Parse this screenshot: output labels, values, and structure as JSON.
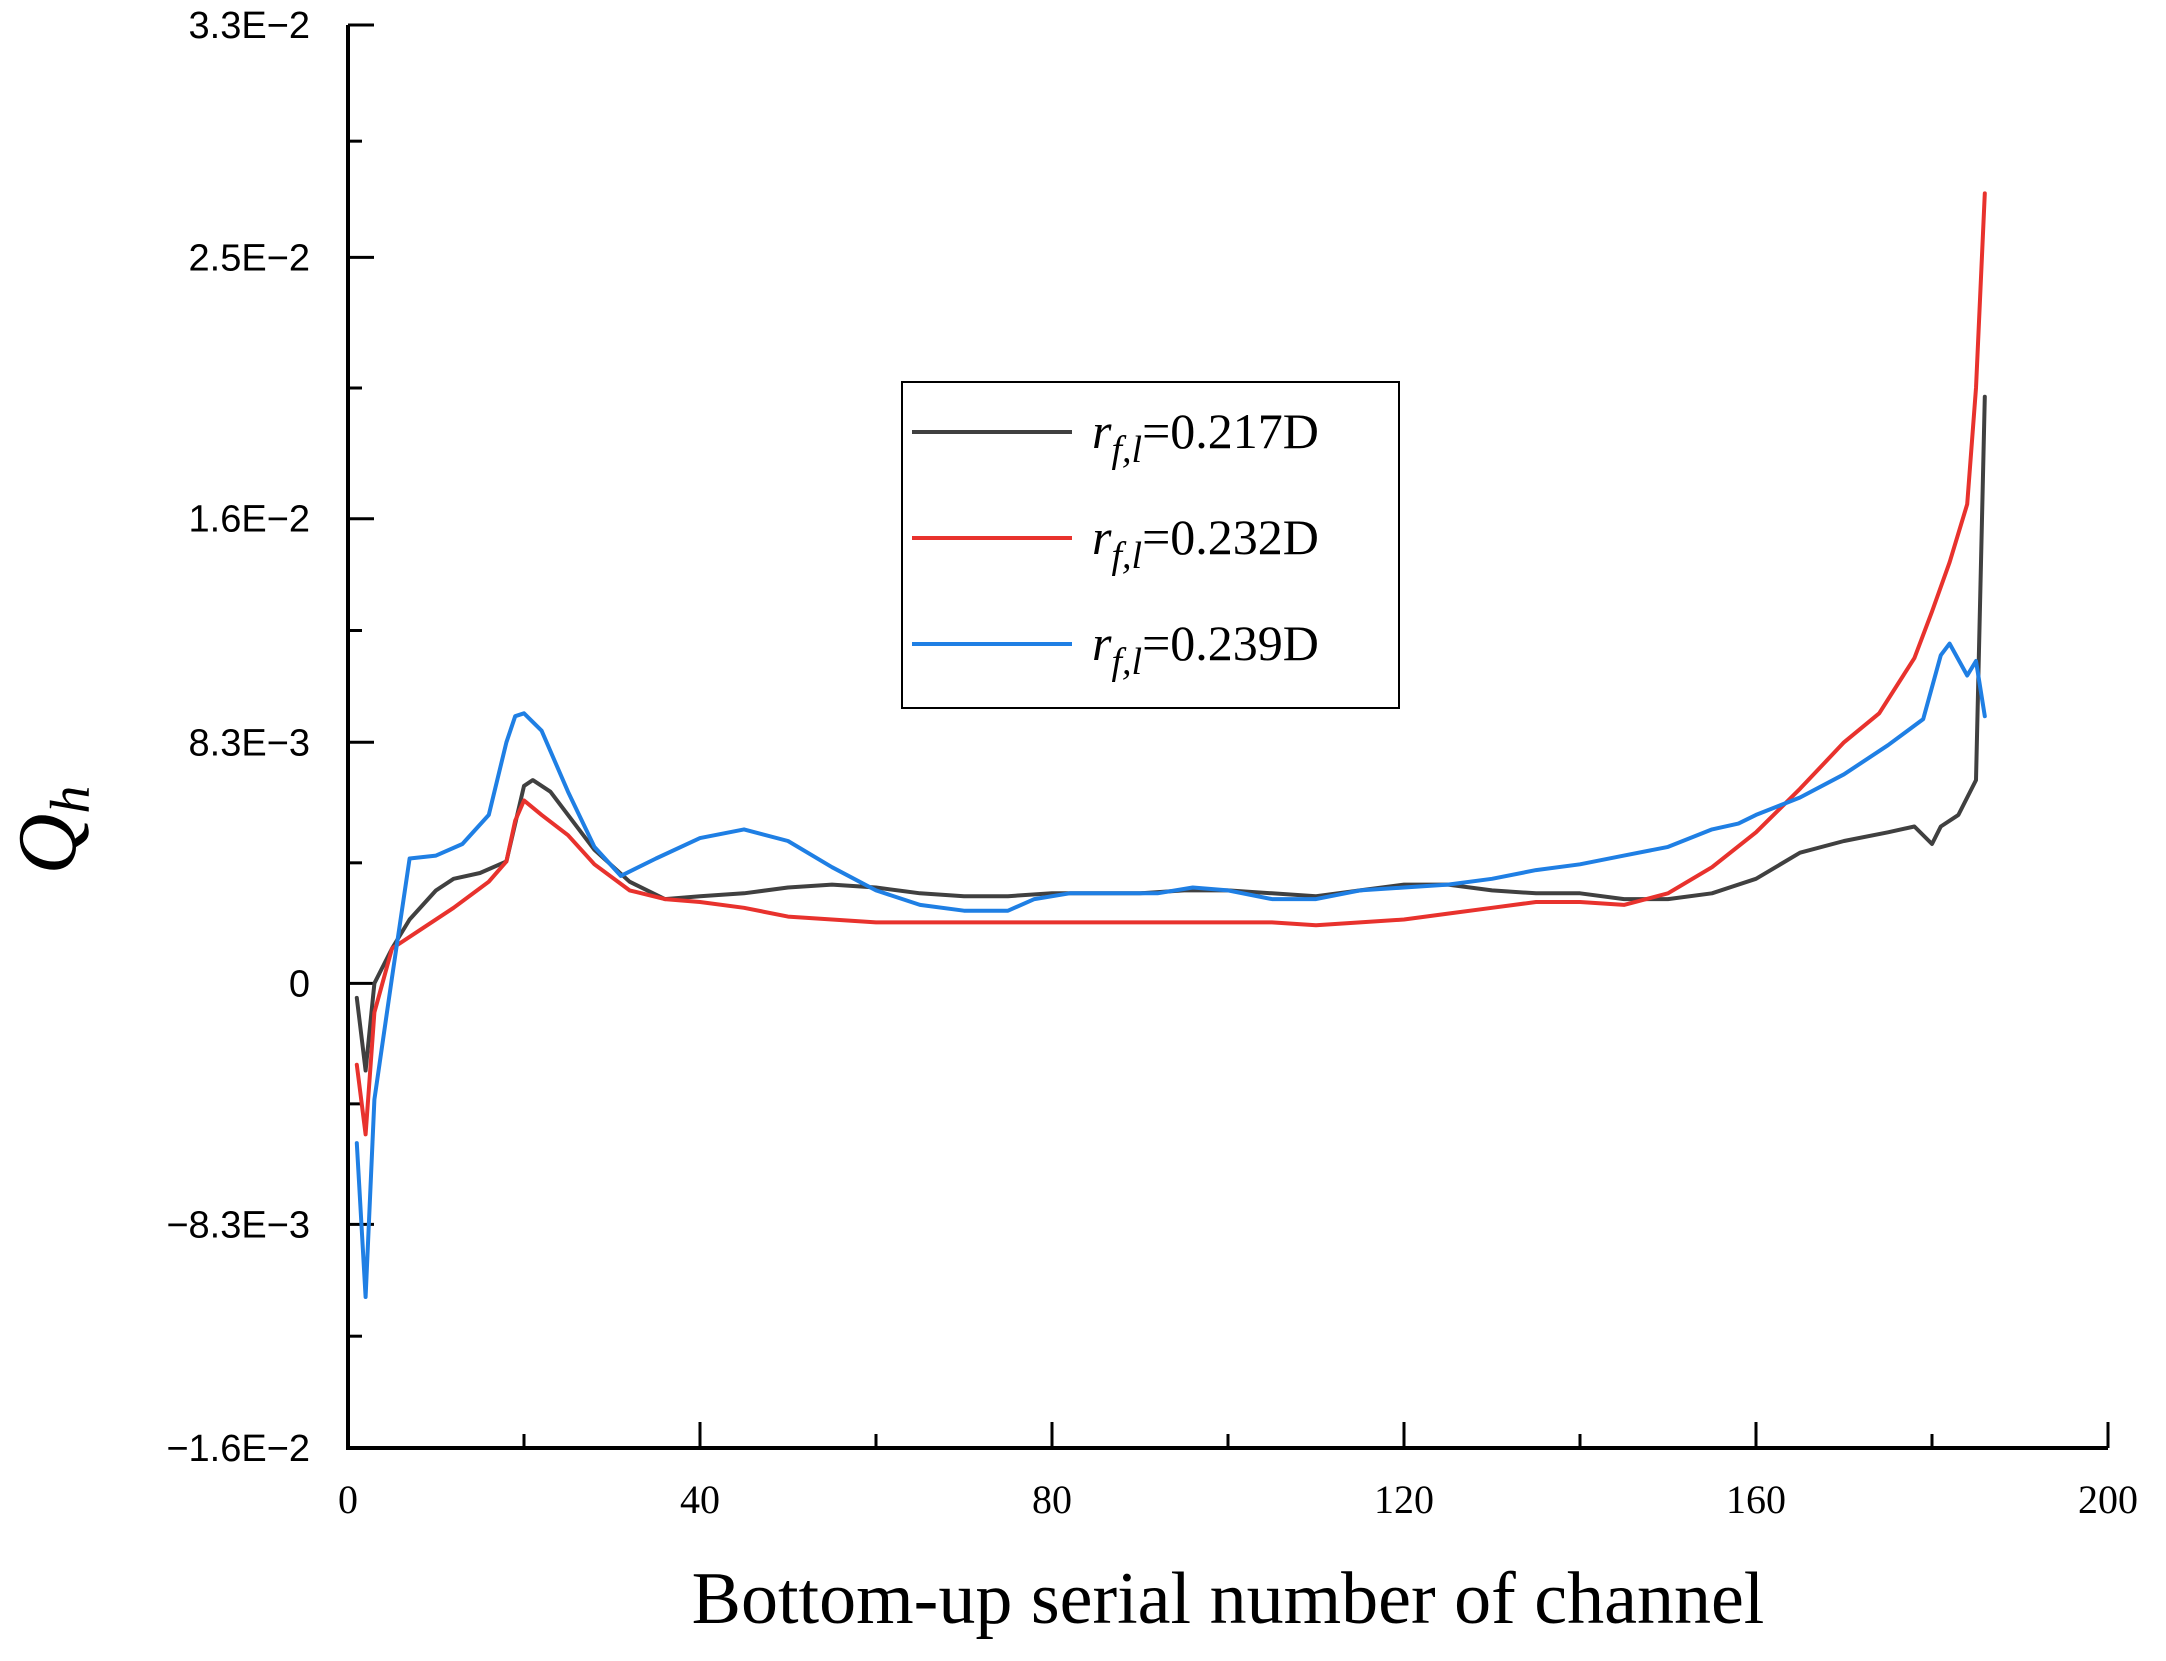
{
  "chart_data": {
    "type": "line",
    "xlabel": "Bottom-up serial number of channel",
    "ylabel": "Q",
    "ylabel_sub": "h",
    "xlim": [
      0,
      200
    ],
    "ylim": [
      -0.016,
      0.033
    ],
    "x_ticks": [
      {
        "value": 0,
        "label": "0"
      },
      {
        "value": 40,
        "label": "40"
      },
      {
        "value": 80,
        "label": "80"
      },
      {
        "value": 120,
        "label": "120"
      },
      {
        "value": 160,
        "label": "160"
      },
      {
        "value": 200,
        "label": "200"
      }
    ],
    "y_ticks": [
      {
        "value": 0.033,
        "label": "3.3E−2"
      },
      {
        "value": 0.025,
        "label": "2.5E−2"
      },
      {
        "value": 0.016,
        "label": "1.6E−2"
      },
      {
        "value": 0.0083,
        "label": "8.3E−3"
      },
      {
        "value": 0,
        "label": "0"
      },
      {
        "value": -0.0083,
        "label": "−8.3E−3"
      },
      {
        "value": -0.016,
        "label": "−1.6E−2"
      }
    ],
    "legend_position": "center-left",
    "series": [
      {
        "legend": {
          "r": "r",
          "sub": "f,l",
          "value": "=0.217D"
        },
        "color": "#404040",
        "points": [
          [
            1,
            -0.0005
          ],
          [
            2,
            -0.003
          ],
          [
            3,
            0
          ],
          [
            5,
            0.0012
          ],
          [
            7,
            0.0022
          ],
          [
            10,
            0.0032
          ],
          [
            12,
            0.0036
          ],
          [
            15,
            0.0038
          ],
          [
            18,
            0.0042
          ],
          [
            20,
            0.0068
          ],
          [
            21,
            0.007
          ],
          [
            23,
            0.0066
          ],
          [
            25,
            0.0058
          ],
          [
            28,
            0.0046
          ],
          [
            32,
            0.0035
          ],
          [
            36,
            0.0029
          ],
          [
            40,
            0.003
          ],
          [
            45,
            0.0031
          ],
          [
            50,
            0.0033
          ],
          [
            55,
            0.0034
          ],
          [
            60,
            0.0033
          ],
          [
            65,
            0.0031
          ],
          [
            70,
            0.003
          ],
          [
            75,
            0.003
          ],
          [
            80,
            0.0031
          ],
          [
            85,
            0.0031
          ],
          [
            90,
            0.0031
          ],
          [
            95,
            0.0032
          ],
          [
            100,
            0.0032
          ],
          [
            105,
            0.0031
          ],
          [
            110,
            0.003
          ],
          [
            115,
            0.0032
          ],
          [
            120,
            0.0034
          ],
          [
            125,
            0.0034
          ],
          [
            130,
            0.0032
          ],
          [
            135,
            0.0031
          ],
          [
            140,
            0.0031
          ],
          [
            145,
            0.0029
          ],
          [
            150,
            0.0029
          ],
          [
            155,
            0.0031
          ],
          [
            160,
            0.0036
          ],
          [
            165,
            0.0045
          ],
          [
            170,
            0.0049
          ],
          [
            175,
            0.0052
          ],
          [
            178,
            0.0054
          ],
          [
            180,
            0.0048
          ],
          [
            181,
            0.0054
          ],
          [
            183,
            0.0058
          ],
          [
            185,
            0.007
          ],
          [
            186,
            0.0202
          ]
        ]
      },
      {
        "legend": {
          "r": "r",
          "sub": "f,l",
          "value": "=0.232D"
        },
        "color": "#e8322d",
        "points": [
          [
            1,
            -0.0028
          ],
          [
            2,
            -0.0052
          ],
          [
            3,
            -0.001
          ],
          [
            5,
            0.0012
          ],
          [
            8,
            0.0018
          ],
          [
            12,
            0.0026
          ],
          [
            16,
            0.0035
          ],
          [
            18,
            0.0042
          ],
          [
            19,
            0.0056
          ],
          [
            20,
            0.0063
          ],
          [
            22,
            0.0058
          ],
          [
            25,
            0.0051
          ],
          [
            28,
            0.0041
          ],
          [
            32,
            0.0032
          ],
          [
            36,
            0.0029
          ],
          [
            40,
            0.0028
          ],
          [
            45,
            0.0026
          ],
          [
            50,
            0.0023
          ],
          [
            55,
            0.0022
          ],
          [
            60,
            0.0021
          ],
          [
            65,
            0.0021
          ],
          [
            70,
            0.0021
          ],
          [
            75,
            0.0021
          ],
          [
            80,
            0.0021
          ],
          [
            85,
            0.0021
          ],
          [
            90,
            0.0021
          ],
          [
            95,
            0.0021
          ],
          [
            100,
            0.0021
          ],
          [
            105,
            0.0021
          ],
          [
            110,
            0.002
          ],
          [
            115,
            0.0021
          ],
          [
            120,
            0.0022
          ],
          [
            125,
            0.0024
          ],
          [
            130,
            0.0026
          ],
          [
            135,
            0.0028
          ],
          [
            140,
            0.0028
          ],
          [
            145,
            0.0027
          ],
          [
            150,
            0.0031
          ],
          [
            155,
            0.004
          ],
          [
            160,
            0.0052
          ],
          [
            165,
            0.0067
          ],
          [
            170,
            0.0083
          ],
          [
            174,
            0.0093
          ],
          [
            178,
            0.0112
          ],
          [
            180,
            0.0128
          ],
          [
            182,
            0.0145
          ],
          [
            184,
            0.0165
          ],
          [
            185,
            0.0205
          ],
          [
            186,
            0.0272
          ]
        ]
      },
      {
        "legend": {
          "r": "r",
          "sub": "f,l",
          "value": "=0.239D"
        },
        "color": "#1f7fe4",
        "points": [
          [
            1,
            -0.0055
          ],
          [
            2,
            -0.0108
          ],
          [
            3,
            -0.004
          ],
          [
            5,
            0.0002
          ],
          [
            7,
            0.0043
          ],
          [
            10,
            0.0044
          ],
          [
            13,
            0.0048
          ],
          [
            16,
            0.0058
          ],
          [
            18,
            0.0083
          ],
          [
            19,
            0.0092
          ],
          [
            20,
            0.0093
          ],
          [
            22,
            0.0087
          ],
          [
            25,
            0.0066
          ],
          [
            28,
            0.0047
          ],
          [
            31,
            0.0037
          ],
          [
            35,
            0.0043
          ],
          [
            40,
            0.005
          ],
          [
            45,
            0.0053
          ],
          [
            50,
            0.0049
          ],
          [
            55,
            0.004
          ],
          [
            60,
            0.0032
          ],
          [
            65,
            0.0027
          ],
          [
            70,
            0.0025
          ],
          [
            75,
            0.0025
          ],
          [
            78,
            0.0029
          ],
          [
            82,
            0.0031
          ],
          [
            88,
            0.0031
          ],
          [
            92,
            0.0031
          ],
          [
            96,
            0.0033
          ],
          [
            100,
            0.0032
          ],
          [
            105,
            0.0029
          ],
          [
            110,
            0.0029
          ],
          [
            115,
            0.0032
          ],
          [
            120,
            0.0033
          ],
          [
            125,
            0.0034
          ],
          [
            130,
            0.0036
          ],
          [
            135,
            0.0039
          ],
          [
            140,
            0.0041
          ],
          [
            145,
            0.0044
          ],
          [
            150,
            0.0047
          ],
          [
            155,
            0.0053
          ],
          [
            158,
            0.0055
          ],
          [
            160,
            0.0058
          ],
          [
            165,
            0.0064
          ],
          [
            170,
            0.0072
          ],
          [
            175,
            0.0082
          ],
          [
            179,
            0.0091
          ],
          [
            181,
            0.0113
          ],
          [
            182,
            0.0117
          ],
          [
            184,
            0.0106
          ],
          [
            185,
            0.0111
          ],
          [
            186,
            0.0092
          ]
        ]
      }
    ]
  }
}
